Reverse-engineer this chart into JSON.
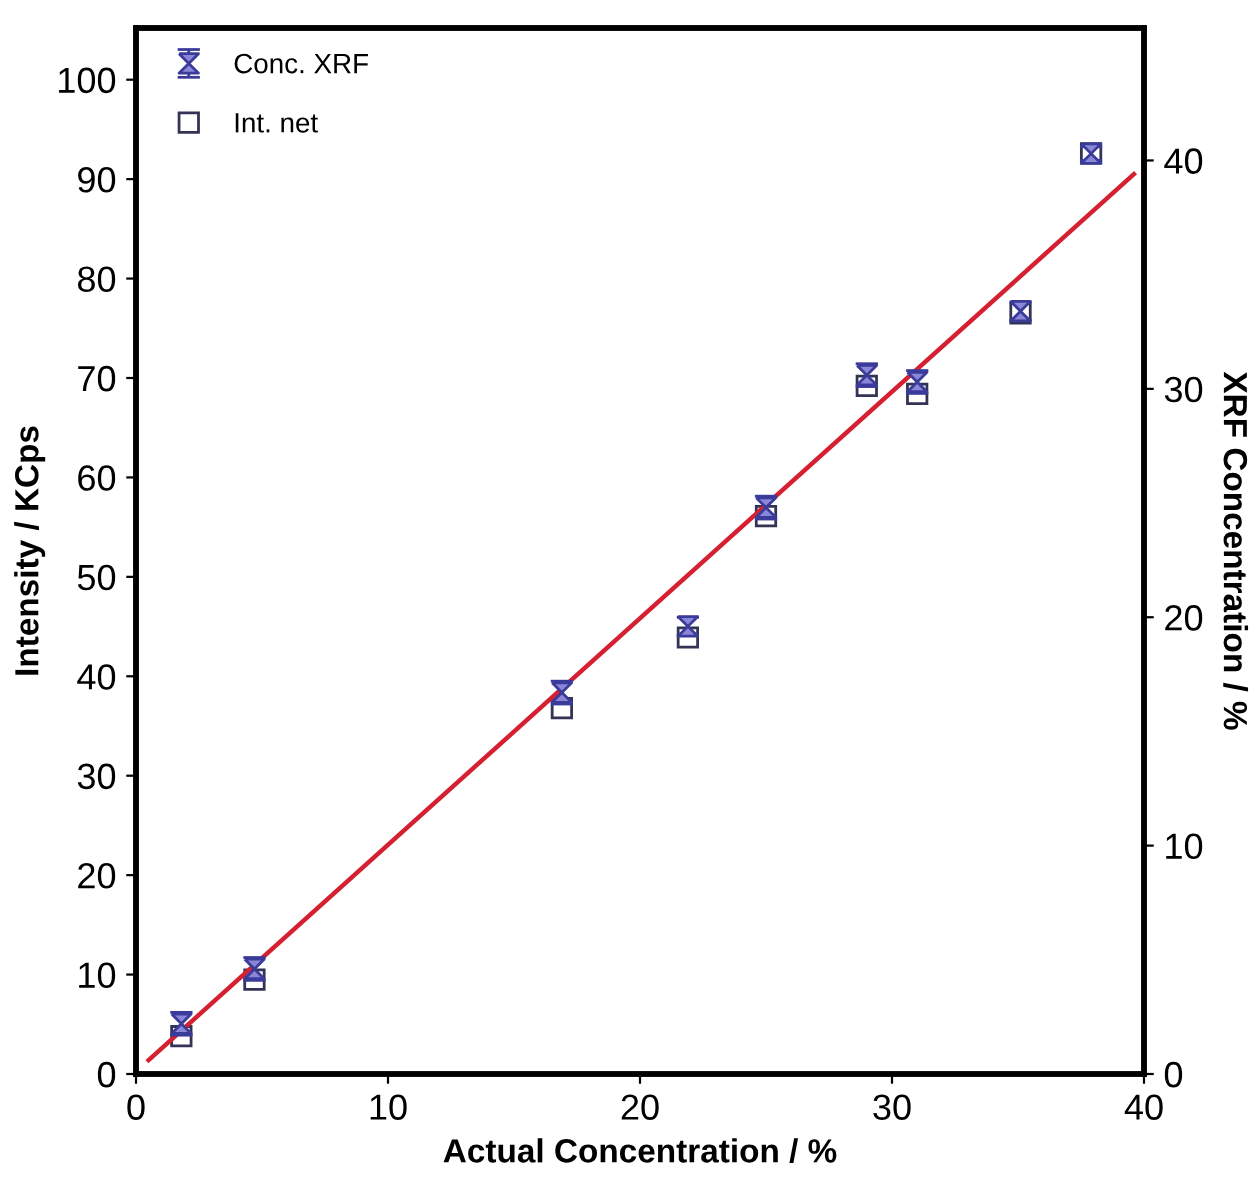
{
  "chart_data": {
    "type": "scatter",
    "xlabel": "Actual Concentration / %",
    "ylabel": "Intensity / KCps",
    "y2label": "XRF Concentration / %",
    "xlim": [
      0,
      40
    ],
    "xticks": [
      0,
      10,
      20,
      30,
      40
    ],
    "ylim": [
      0,
      105.2
    ],
    "yticks": [
      0,
      10,
      20,
      30,
      40,
      50,
      60,
      70,
      80,
      90,
      100
    ],
    "y2lim": [
      0,
      45.8
    ],
    "y2ticks": [
      0,
      10,
      20,
      30,
      40
    ],
    "grid": false,
    "legend": "top left",
    "series": [
      {
        "name": "Conc. XRF",
        "axis": "y2",
        "marker": "triangle",
        "color": "#3b3b9a",
        "x": [
          1.8,
          4.7,
          16.9,
          21.9,
          25,
          29,
          31,
          35.1,
          37.9
        ],
        "values": [
          2.2,
          4.6,
          16.7,
          19.6,
          24.8,
          30.6,
          30.3,
          33.4,
          40.3
        ],
        "errors": [
          0.5,
          0.5,
          0.5,
          0.4,
          0.5,
          0.5,
          0.5,
          0.4,
          0.3
        ]
      },
      {
        "name": "Int. net",
        "marker": "square",
        "color": "#333355",
        "x": [
          1.8,
          4.7,
          16.9,
          21.9,
          25,
          29,
          31,
          35.1,
          37.9
        ],
        "values": [
          3.8,
          9.5,
          36.8,
          43.9,
          56.1,
          69.2,
          68.4,
          76.5,
          92.6
        ]
      },
      {
        "type": "line",
        "color": "#d42030",
        "line_style": "solid",
        "marker": "none",
        "x": [
          0.5,
          39.6
        ],
        "values": [
          1.4,
          90.5
        ]
      }
    ]
  }
}
